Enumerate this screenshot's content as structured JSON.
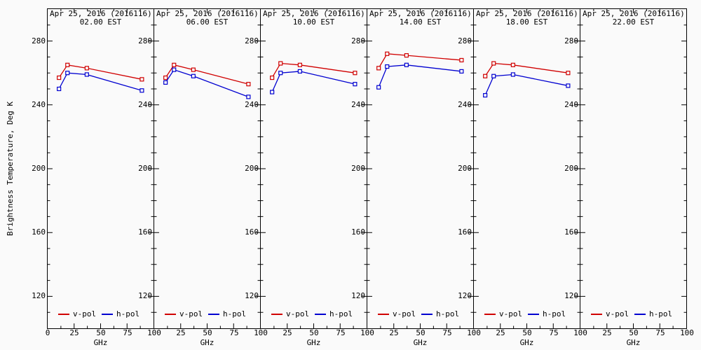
{
  "window": {
    "background": "#fafafa"
  },
  "y_axis": {
    "title": "Brightness Temperature, Deg K",
    "tick_labels": [
      280,
      240,
      200,
      160,
      120
    ],
    "major_ticks": [
      120,
      160,
      200,
      240,
      280
    ],
    "minor_step": 10,
    "range": [
      100,
      300
    ]
  },
  "x_axis": {
    "unit_label": "GHz",
    "tick_labels": [
      0,
      25,
      50,
      75,
      100
    ],
    "major_ticks": [
      25,
      50,
      75
    ],
    "minor_ticks": [
      12.5,
      37.5,
      62.5,
      87.5
    ],
    "range": [
      0,
      100
    ]
  },
  "legend": {
    "items": [
      {
        "label": "v-pol",
        "color": "#d00000"
      },
      {
        "label": "h-pol",
        "color": "#0000d0"
      }
    ]
  },
  "chart_data": {
    "type": "line",
    "x": [
      10.7,
      18.7,
      37,
      89
    ],
    "xlabel": "GHz",
    "ylabel": "Brightness Temperature, Deg K",
    "xlim": [
      0,
      100
    ],
    "ylim": [
      100,
      300
    ],
    "marker": "open-square",
    "panels": [
      {
        "date": "Apr 25, 2016 (2016116)",
        "time": "02.00 EST",
        "series": [
          {
            "name": "v-pol",
            "color": "#d00000",
            "values": [
              257,
              265,
              263,
              256
            ]
          },
          {
            "name": "h-pol",
            "color": "#0000d0",
            "values": [
              250,
              260,
              259,
              249
            ]
          }
        ]
      },
      {
        "date": "Apr 25, 2016 (2016116)",
        "time": "06.00 EST",
        "series": [
          {
            "name": "v-pol",
            "color": "#d00000",
            "values": [
              257,
              265,
              262,
              253
            ]
          },
          {
            "name": "h-pol",
            "color": "#0000d0",
            "values": [
              254,
              262,
              258,
              245
            ]
          }
        ]
      },
      {
        "date": "Apr 25, 2016 (2016116)",
        "time": "10.00 EST",
        "series": [
          {
            "name": "v-pol",
            "color": "#d00000",
            "values": [
              257,
              266,
              265,
              260
            ]
          },
          {
            "name": "h-pol",
            "color": "#0000d0",
            "values": [
              248,
              260,
              261,
              253
            ]
          }
        ]
      },
      {
        "date": "Apr 25, 2016 (2016116)",
        "time": "14.00 EST",
        "series": [
          {
            "name": "v-pol",
            "color": "#d00000",
            "values": [
              263,
              272,
              271,
              268
            ]
          },
          {
            "name": "h-pol",
            "color": "#0000d0",
            "values": [
              251,
              264,
              265,
              261
            ]
          }
        ]
      },
      {
        "date": "Apr 25, 2016 (2016116)",
        "time": "18.00 EST",
        "series": [
          {
            "name": "v-pol",
            "color": "#d00000",
            "values": [
              258,
              266,
              265,
              260
            ]
          },
          {
            "name": "h-pol",
            "color": "#0000d0",
            "values": [
              246,
              258,
              259,
              252
            ]
          }
        ]
      },
      {
        "date": "Apr 25, 2016 (2016116)",
        "time": "22.00 EST",
        "series": []
      }
    ]
  }
}
